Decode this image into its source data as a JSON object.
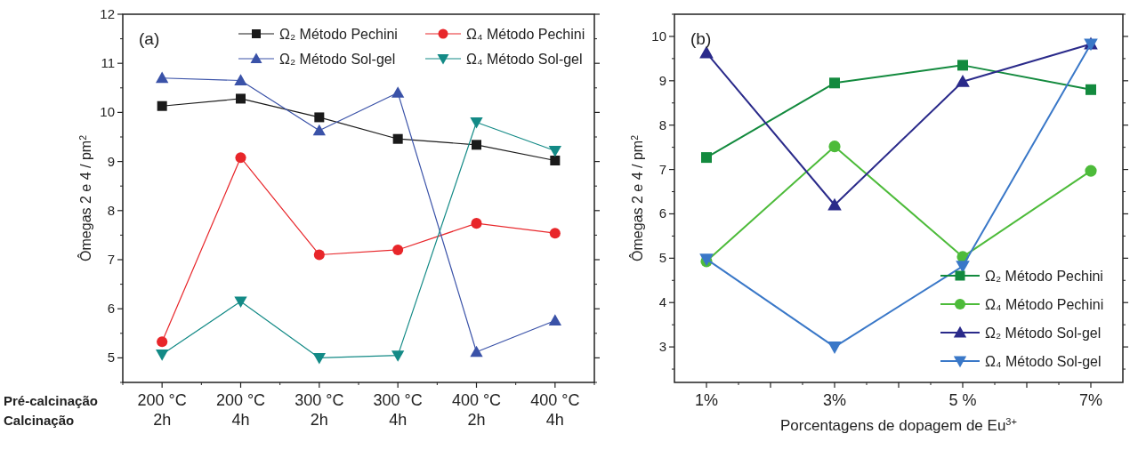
{
  "chart_data": [
    {
      "type": "line",
      "ylabel": "Ômegas 2 e 4 / pm$^{2}$",
      "annotations": [
        "(a)",
        "Pré-calcinação",
        "Calcinação"
      ],
      "categories": [
        "200 °C\n2h",
        "200 °C\n4h",
        "300 °C\n2h",
        "300 °C\n4h",
        "400 °C\n2h",
        "400 °C\n4h"
      ],
      "ylim": [
        4.5,
        12
      ],
      "yticks": [
        5,
        6,
        7,
        8,
        9,
        10,
        11,
        12
      ],
      "legend": "top right",
      "grid": false,
      "series": [
        {
          "name": "Ω₂ Método Pechini",
          "color": "#1a1a1a",
          "marker": "square",
          "values": [
            10.13,
            10.28,
            9.9,
            9.46,
            9.34,
            9.02
          ]
        },
        {
          "name": "Ω₄ Método Pechini",
          "color": "#e8262a",
          "marker": "circle",
          "values": [
            5.33,
            9.08,
            7.1,
            7.2,
            7.74,
            7.54
          ]
        },
        {
          "name": "Ω₂ Método Sol-gel",
          "color": "#3a52a8",
          "marker": "triangle",
          "values": [
            10.7,
            10.65,
            9.63,
            10.4,
            5.12,
            5.76
          ]
        },
        {
          "name": "Ω₄ Método Sol-gel",
          "color": "#138a86",
          "marker": "triangle-down",
          "values": [
            5.07,
            6.15,
            5.0,
            5.05,
            9.8,
            9.22
          ]
        }
      ]
    },
    {
      "type": "line",
      "ylabel": "Ômegas 2 e 4 / pm$^{2}$",
      "xlabel": "Porcentagens de dopagem de Eu$^{3+}$",
      "annotations": [
        "(b)"
      ],
      "x": [
        1,
        3,
        5,
        7
      ],
      "xlim": [
        0.5,
        7.5
      ],
      "xticks": [
        {
          "value": 1,
          "label": "1%"
        },
        {
          "value": 2,
          "label": null
        },
        {
          "value": 3,
          "label": "3%"
        },
        {
          "value": 4,
          "label": null
        },
        {
          "value": 5,
          "label": "5 %"
        },
        {
          "value": 6,
          "label": null
        },
        {
          "value": 7,
          "label": "7%"
        }
      ],
      "ylim": [
        2.2,
        10.5
      ],
      "yticks": [
        3,
        4,
        5,
        6,
        7,
        8,
        9,
        10
      ],
      "legend": "bottom right",
      "grid": false,
      "series": [
        {
          "name": "Ω₂ Método Pechini",
          "color": "#138a3e",
          "marker": "square",
          "values": [
            7.27,
            8.95,
            9.35,
            8.8
          ]
        },
        {
          "name": "Ω₄ Método Pechini",
          "color": "#4dbb3a",
          "marker": "circle",
          "values": [
            4.93,
            7.52,
            5.03,
            6.97
          ]
        },
        {
          "name": "Ω₂ Método Sol-gel",
          "color": "#2a2a8a",
          "marker": "triangle",
          "values": [
            9.63,
            6.2,
            8.98,
            9.83
          ]
        },
        {
          "name": "Ω₄ Método Sol-gel",
          "color": "#3a78c8",
          "marker": "triangle-down",
          "values": [
            4.98,
            3.0,
            4.82,
            9.83
          ]
        }
      ]
    }
  ]
}
